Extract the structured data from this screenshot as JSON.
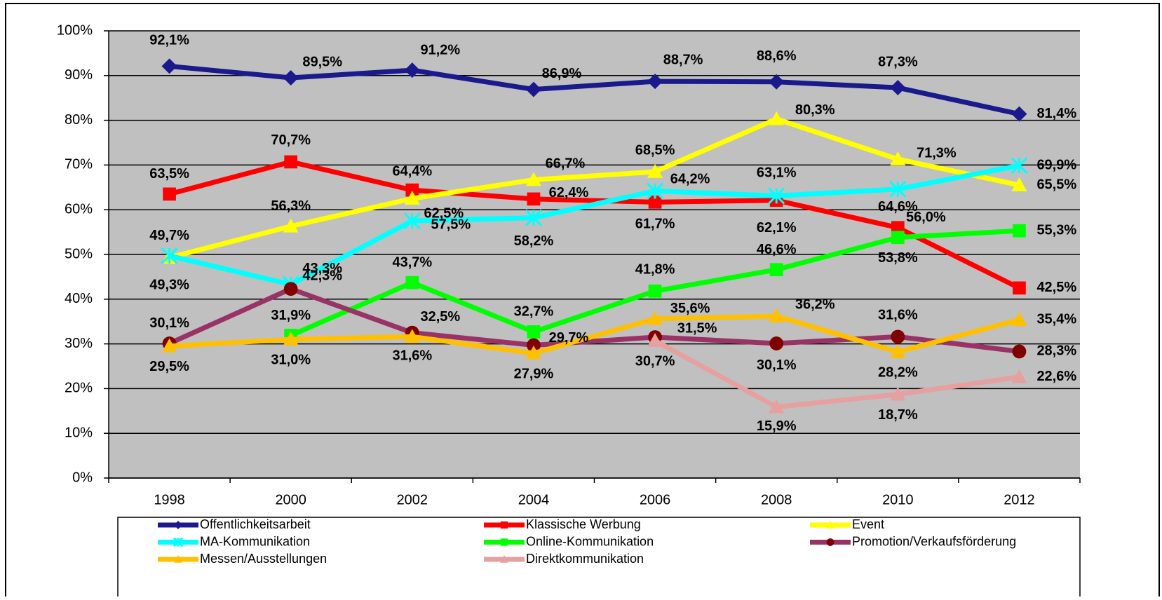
{
  "chart_data": {
    "type": "line",
    "categories": [
      "1998",
      "2000",
      "2002",
      "2004",
      "2006",
      "2008",
      "2010",
      "2012"
    ],
    "ylim": [
      0,
      100
    ],
    "yticks": [
      {
        "value": 0,
        "label": "0%"
      },
      {
        "value": 10,
        "label": "10%"
      },
      {
        "value": 20,
        "label": "20%"
      },
      {
        "value": 30,
        "label": "30%"
      },
      {
        "value": 40,
        "label": "40%"
      },
      {
        "value": 50,
        "label": "50%"
      },
      {
        "value": 60,
        "label": "60%"
      },
      {
        "value": 70,
        "label": "70%"
      },
      {
        "value": 80,
        "label": "80%"
      },
      {
        "value": 90,
        "label": "90%"
      },
      {
        "value": 100,
        "label": "100%"
      }
    ],
    "grid": true,
    "series": [
      {
        "name": "Offentlichkeitsarbeit",
        "color": "#1a1a8c",
        "marker": "diamond",
        "values": [
          92.1,
          89.5,
          91.2,
          86.9,
          88.7,
          88.6,
          87.3,
          81.4
        ],
        "value_labels": [
          "92,1%",
          "89,5%",
          "91,2%",
          "86,9%",
          "88,7%",
          "88,6%",
          "87,3%",
          "81,4%"
        ]
      },
      {
        "name": "Klassische Werbung",
        "color": "#ff0000",
        "marker": "square",
        "values": [
          63.5,
          70.7,
          64.4,
          62.4,
          61.7,
          62.1,
          56.0,
          42.5
        ],
        "value_labels": [
          "63,5%",
          "70,7%",
          "64,4%",
          "62,4%",
          "61,7%",
          "62,1%",
          "56,0%",
          "42,5%"
        ]
      },
      {
        "name": "Event",
        "color": "#ffff00",
        "marker": "triangle",
        "values": [
          49.3,
          56.3,
          62.5,
          66.7,
          68.5,
          80.3,
          71.3,
          65.5
        ],
        "value_labels": [
          "49,3%",
          "56,3%",
          "62,5%",
          "66,7%",
          "68,5%",
          "80,3%",
          "71,3%",
          "65,5%"
        ]
      },
      {
        "name": "MA-Kommunikation",
        "color": "#00ffff",
        "marker": "star",
        "values": [
          49.7,
          43.3,
          57.5,
          58.2,
          64.2,
          63.1,
          64.6,
          69.9
        ],
        "value_labels": [
          "49,7%",
          "43,3%",
          "57,5%",
          "58,2%",
          "64,2%",
          "63,1%",
          "64,6%",
          "69,9%"
        ]
      },
      {
        "name": "Online-Kommunikation",
        "color": "#00ff00",
        "marker": "square",
        "values": [
          null,
          31.9,
          43.7,
          32.7,
          41.8,
          46.6,
          53.8,
          55.3
        ],
        "value_labels": [
          null,
          "31,9%",
          "43,7%",
          "32,7%",
          "41,8%",
          "46,6%",
          "53,8%",
          "55,3%"
        ]
      },
      {
        "name": "Promotion/Verkaufsförderung",
        "color": "#993366",
        "markerColor": "#800000",
        "marker": "circle",
        "values": [
          30.1,
          42.3,
          32.5,
          29.7,
          31.5,
          30.1,
          31.6,
          28.3
        ],
        "value_labels": [
          "30,1%",
          "42,3%",
          "32,5%",
          "29,7%",
          "31,5%",
          "30,1%",
          "31,6%",
          "28,3%"
        ]
      },
      {
        "name": "Messen/Ausstellungen",
        "color": "#ffc000",
        "marker": "triangle",
        "values": [
          29.5,
          31.0,
          31.6,
          27.9,
          35.6,
          36.2,
          28.2,
          35.4
        ],
        "value_labels": [
          "29,5%",
          "31,0%",
          "31,6%",
          "27,9%",
          "35,6%",
          "36,2%",
          "28,2%",
          "35,4%"
        ]
      },
      {
        "name": "Direktkommunikation",
        "color": "#e6a0a0",
        "marker": "triangle",
        "values": [
          null,
          null,
          null,
          null,
          30.7,
          15.9,
          18.7,
          22.6
        ],
        "value_labels": [
          null,
          null,
          null,
          null,
          "30,7%",
          "15,9%",
          "18,7%",
          "22,6%"
        ]
      }
    ]
  }
}
